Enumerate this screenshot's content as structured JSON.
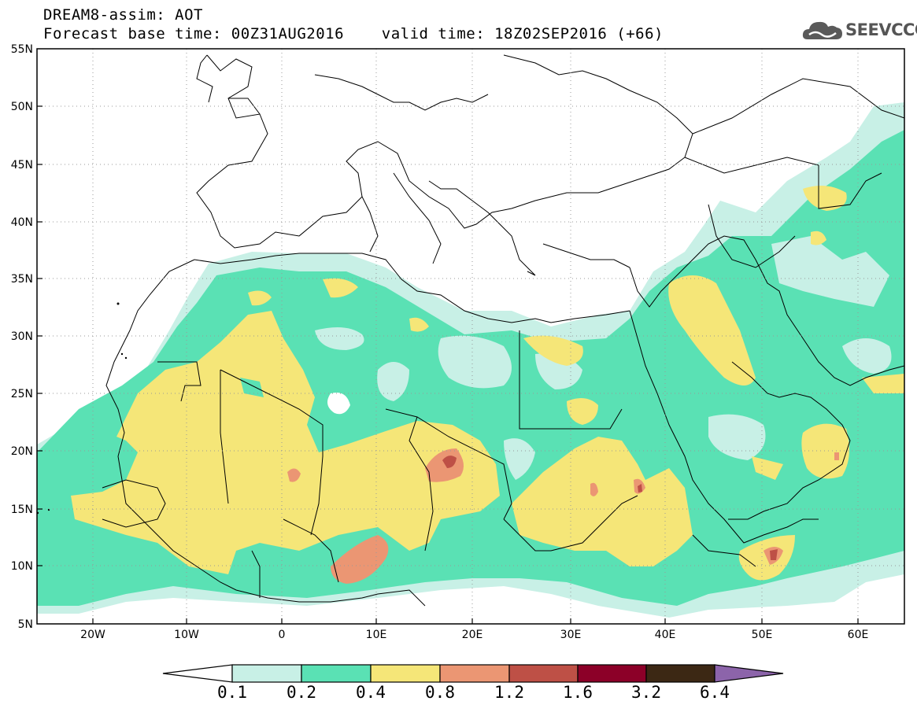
{
  "header": {
    "line1": "DREAM8-assim: AOT",
    "line2": "Forecast base time: 00Z31AUG2016    valid time: 18Z02SEP2016 (+66)"
  },
  "logo": {
    "text": "SEEVCCC",
    "icon": "cloud-icon"
  },
  "map": {
    "lat_labels": [
      "55N",
      "50N",
      "45N",
      "40N",
      "35N",
      "30N",
      "25N",
      "20N",
      "15N",
      "10N",
      "5N"
    ],
    "lon_labels": [
      "20W",
      "10W",
      "0",
      "10E",
      "20E",
      "30E",
      "40E",
      "50E",
      "60E"
    ],
    "lon_range": [
      -25,
      65
    ],
    "lat_range": [
      5,
      55
    ],
    "grid": "dotted"
  },
  "colorbar": {
    "labels": [
      "0.1",
      "0.2",
      "0.4",
      "0.8",
      "1.2",
      "1.6",
      "3.2",
      "6.4"
    ],
    "colors": [
      "#ffffff",
      "#c8f0e6",
      "#5ae1b4",
      "#f5e678",
      "#eb9673",
      "#be5046",
      "#8c0028",
      "#3c2814",
      "#8c64aa"
    ]
  }
}
